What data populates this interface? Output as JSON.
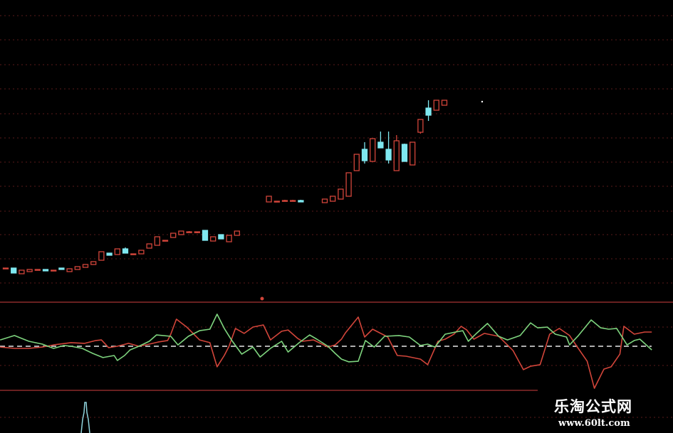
{
  "chart_data": [
    {
      "type": "candlestick",
      "title": "",
      "xlabel": "",
      "ylabel": "",
      "ylim": [
        8.75,
        30
      ],
      "grid": true,
      "colors": {
        "up": "#d2453a",
        "down": "#7fe8f0",
        "grid": "#5a1a1a",
        "background": "#000000"
      },
      "candles": [
        [
          11.15,
          11.15,
          11.15,
          11.15
        ],
        [
          11.15,
          11.15,
          10.8,
          10.8
        ],
        [
          10.75,
          11.0,
          10.75,
          11.0
        ],
        [
          10.9,
          11.05,
          10.9,
          11.05
        ],
        [
          11.05,
          11.05,
          11.05,
          11.05
        ],
        [
          11.05,
          11.05,
          10.95,
          10.95
        ],
        [
          11.0,
          11.0,
          11.0,
          11.0
        ],
        [
          11.15,
          11.15,
          11.05,
          11.05
        ],
        [
          10.9,
          11.1,
          10.9,
          11.1
        ],
        [
          11.05,
          11.25,
          11.05,
          11.25
        ],
        [
          11.2,
          11.4,
          11.2,
          11.4
        ],
        [
          11.4,
          11.6,
          11.4,
          11.6
        ],
        [
          11.7,
          12.3,
          11.7,
          12.3
        ],
        [
          12.2,
          12.2,
          12.05,
          12.05
        ],
        [
          12.1,
          12.5,
          12.1,
          12.5
        ],
        [
          12.5,
          12.6,
          12.2,
          12.2
        ],
        [
          12.15,
          12.15,
          12.15,
          12.15
        ],
        [
          12.15,
          12.4,
          12.15,
          12.4
        ],
        [
          12.55,
          12.85,
          12.55,
          12.85
        ],
        [
          12.75,
          13.35,
          12.75,
          13.35
        ],
        [
          13.1,
          13.1,
          13.1,
          13.1
        ],
        [
          13.3,
          13.6,
          13.3,
          13.6
        ],
        [
          13.5,
          13.75,
          13.5,
          13.75
        ],
        [
          13.7,
          13.75,
          13.65,
          13.7
        ],
        [
          13.7,
          13.7,
          13.6,
          13.7
        ],
        [
          13.8,
          13.8,
          13.1,
          13.1
        ],
        [
          13.05,
          13.35,
          13.05,
          13.35
        ],
        [
          13.5,
          13.5,
          13.2,
          13.2
        ],
        [
          13.0,
          13.45,
          13.0,
          13.45
        ],
        [
          13.45,
          13.75,
          13.45,
          13.75
        ],
        null,
        null,
        null,
        [
          15.8,
          16.2,
          15.8,
          16.2
        ],
        [
          15.85,
          15.85,
          15.85,
          15.85
        ],
        [
          15.9,
          15.95,
          15.85,
          15.9
        ],
        [
          15.9,
          15.95,
          15.85,
          15.9
        ],
        [
          15.9,
          15.95,
          15.8,
          15.8
        ],
        null,
        null,
        [
          15.75,
          16.0,
          15.75,
          16.0
        ],
        [
          15.85,
          16.2,
          15.85,
          16.2
        ],
        [
          16.0,
          16.7,
          16.0,
          16.7
        ],
        [
          16.2,
          17.85,
          16.2,
          17.85
        ],
        [
          18.0,
          19.15,
          18.0,
          19.15
        ],
        [
          19.5,
          20.0,
          18.5,
          18.7
        ],
        [
          18.65,
          20.25,
          18.65,
          20.25
        ],
        [
          20.0,
          20.75,
          19.6,
          19.6
        ],
        [
          19.5,
          20.75,
          18.5,
          18.75
        ],
        [
          18.0,
          20.5,
          18.0,
          20.1
        ],
        [
          19.85,
          19.9,
          18.65,
          18.65
        ],
        [
          18.4,
          20.0,
          18.4,
          20.0
        ],
        [
          20.7,
          21.6,
          20.6,
          21.6
        ],
        [
          22.4,
          22.95,
          21.5,
          21.9
        ],
        [
          22.25,
          22.95,
          22.25,
          22.95
        ],
        [
          22.6,
          22.95,
          22.6,
          22.95
        ]
      ]
    },
    {
      "type": "line",
      "title": "",
      "xlabel": "",
      "ylabel": "",
      "ylim": [
        -2.3,
        2.3
      ],
      "zero_line": 0,
      "grid": true,
      "series": [
        {
          "color": "#d2453a",
          "points": [
            [
              -0.7,
              -0.04
            ],
            [
              1.1,
              -0.11
            ],
            [
              2.9,
              -0.11
            ],
            [
              4.6,
              -0.04
            ],
            [
              6.0,
              0.07
            ],
            [
              8.2,
              0.19
            ],
            [
              9.9,
              0.15
            ],
            [
              11.3,
              0.3
            ],
            [
              12.0,
              0.33
            ],
            [
              12.9,
              -0.07
            ],
            [
              14.0,
              0.0
            ],
            [
              15.4,
              0.15
            ],
            [
              16.7,
              0.0
            ],
            [
              18.0,
              0.11
            ],
            [
              19.1,
              0.22
            ],
            [
              20.3,
              0.3
            ],
            [
              20.7,
              0.63
            ],
            [
              21.4,
              1.41
            ],
            [
              22.7,
              1.0
            ],
            [
              24.3,
              0.33
            ],
            [
              25.6,
              0.19
            ],
            [
              26.5,
              -1.07
            ],
            [
              27.4,
              -0.48
            ],
            [
              28.0,
              0.0
            ],
            [
              28.8,
              0.93
            ],
            [
              29.9,
              0.67
            ],
            [
              31.0,
              1.0
            ],
            [
              32.3,
              1.11
            ],
            [
              33.2,
              0.33
            ],
            [
              34.6,
              0.78
            ],
            [
              35.4,
              0.85
            ],
            [
              36.6,
              0.41
            ],
            [
              37.2,
              0.26
            ],
            [
              38.6,
              0.33
            ],
            [
              40.4,
              -0.04
            ],
            [
              41.3,
              0.07
            ],
            [
              42.1,
              0.37
            ],
            [
              42.6,
              0.7
            ],
            [
              44.2,
              1.52
            ],
            [
              45.0,
              0.48
            ],
            [
              46.0,
              0.89
            ],
            [
              47.9,
              0.48
            ],
            [
              49.1,
              -0.48
            ],
            [
              50.2,
              -0.52
            ],
            [
              52.0,
              -0.67
            ],
            [
              52.9,
              -0.96
            ],
            [
              54.2,
              0.26
            ],
            [
              55.1,
              0.37
            ],
            [
              56.2,
              0.63
            ],
            [
              57.1,
              1.04
            ],
            [
              57.8,
              0.85
            ],
            [
              58.7,
              0.37
            ],
            [
              60.0,
              0.67
            ],
            [
              61.8,
              0.52
            ],
            [
              63.6,
              -0.22
            ],
            [
              64.9,
              -1.22
            ],
            [
              65.8,
              -1.04
            ],
            [
              67.0,
              -0.96
            ],
            [
              68.2,
              0.63
            ],
            [
              69.4,
              0.93
            ],
            [
              70.7,
              0.56
            ],
            [
              71.6,
              0.0
            ],
            [
              72.9,
              -0.78
            ],
            [
              73.8,
              -2.19
            ],
            [
              75.0,
              -1.19
            ],
            [
              75.9,
              -1.07
            ],
            [
              77.0,
              -0.41
            ],
            [
              77.5,
              1.04
            ],
            [
              78.8,
              0.63
            ],
            [
              80.1,
              0.74
            ],
            [
              81.0,
              0.74
            ]
          ]
        },
        {
          "color": "#7ed47e",
          "points": [
            [
              -0.7,
              0.33
            ],
            [
              1.1,
              0.56
            ],
            [
              2.9,
              0.26
            ],
            [
              4.6,
              0.11
            ],
            [
              6.0,
              -0.11
            ],
            [
              7.3,
              0.04
            ],
            [
              8.2,
              0.0
            ],
            [
              9.6,
              -0.11
            ],
            [
              10.9,
              -0.37
            ],
            [
              12.2,
              -0.59
            ],
            [
              13.6,
              -0.48
            ],
            [
              14.0,
              -0.74
            ],
            [
              14.9,
              -0.48
            ],
            [
              15.6,
              -0.19
            ],
            [
              16.7,
              0.0
            ],
            [
              18.0,
              0.26
            ],
            [
              18.9,
              0.59
            ],
            [
              20.7,
              0.52
            ],
            [
              21.6,
              0.07
            ],
            [
              22.9,
              0.52
            ],
            [
              24.3,
              0.81
            ],
            [
              25.6,
              0.89
            ],
            [
              26.5,
              1.67
            ],
            [
              27.4,
              0.93
            ],
            [
              28.3,
              0.33
            ],
            [
              29.6,
              -0.41
            ],
            [
              31.0,
              -0.04
            ],
            [
              31.9,
              -0.56
            ],
            [
              33.2,
              -0.11
            ],
            [
              34.6,
              0.26
            ],
            [
              35.4,
              -0.3
            ],
            [
              36.8,
              0.19
            ],
            [
              38.1,
              0.59
            ],
            [
              39.0,
              0.37
            ],
            [
              40.4,
              0.0
            ],
            [
              41.3,
              -0.37
            ],
            [
              42.1,
              -0.67
            ],
            [
              43.0,
              -0.81
            ],
            [
              44.2,
              -0.78
            ],
            [
              45.1,
              0.3
            ],
            [
              46.2,
              -0.04
            ],
            [
              47.5,
              0.52
            ],
            [
              49.3,
              0.56
            ],
            [
              50.6,
              0.48
            ],
            [
              52.0,
              0.04
            ],
            [
              52.9,
              0.11
            ],
            [
              53.8,
              -0.04
            ],
            [
              55.1,
              0.63
            ],
            [
              56.4,
              0.74
            ],
            [
              57.3,
              0.81
            ],
            [
              58.0,
              0.26
            ],
            [
              59.1,
              0.7
            ],
            [
              60.4,
              1.19
            ],
            [
              61.8,
              0.52
            ],
            [
              62.9,
              0.33
            ],
            [
              64.5,
              0.56
            ],
            [
              65.8,
              1.22
            ],
            [
              66.7,
              0.96
            ],
            [
              67.9,
              1.0
            ],
            [
              68.9,
              0.63
            ],
            [
              70.3,
              0.48
            ],
            [
              70.7,
              0.07
            ],
            [
              71.8,
              0.56
            ],
            [
              73.4,
              1.37
            ],
            [
              74.6,
              0.96
            ],
            [
              75.6,
              0.89
            ],
            [
              76.6,
              0.93
            ],
            [
              77.9,
              0.07
            ],
            [
              78.8,
              0.3
            ],
            [
              79.5,
              0.37
            ],
            [
              81.0,
              -0.19
            ]
          ]
        }
      ]
    }
  ],
  "watermark": {
    "site_name": "乐淘公式网",
    "url": "www.60lt.com"
  }
}
